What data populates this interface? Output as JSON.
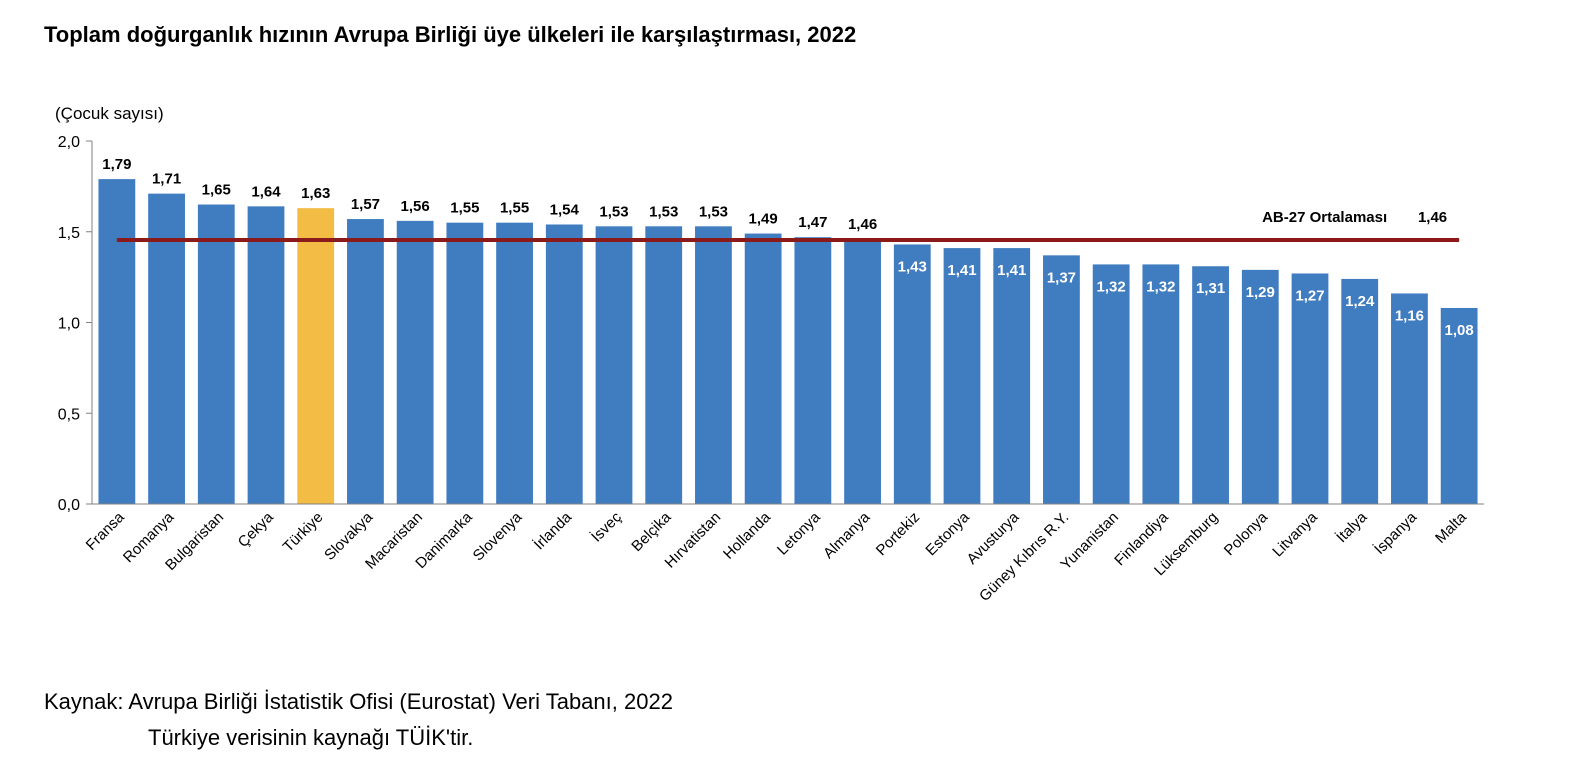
{
  "chart_title": "Toplam doğurganlık hızının Avrupa Birliği üye ülkeleri ile karşılaştırması, 2022",
  "source": {
    "line1": "Kaynak: Avrupa Birliği İstatistik Ofisi (Eurostat) Veri Tabanı, 2022",
    "line2": "Türkiye verisinin kaynağı TÜİK'tir."
  },
  "chart_data": {
    "type": "bar",
    "title": "Toplam doğurganlık hızının Avrupa Birliği üye ülkeleri ile karşılaştırması, 2022",
    "ylabel": "(Çocuk sayısı)",
    "xlabel": "",
    "ylim": [
      0,
      2.0
    ],
    "yticks": [
      "0,0",
      "0,5",
      "1,0",
      "1,5",
      "2,0"
    ],
    "ytick_values": [
      0,
      0.5,
      1.0,
      1.5,
      2.0
    ],
    "categories": [
      "Fransa",
      "Romanya",
      "Bulgaristan",
      "Çekya",
      "Türkiye",
      "Slovakya",
      "Macaristan",
      "Danimarka",
      "Slovenya",
      "İrlanda",
      "İsveç",
      "Belçika",
      "Hırvatistan",
      "Hollanda",
      "Letonya",
      "Almanya",
      "Portekiz",
      "Estonya",
      "Avusturya",
      "Güney Kıbrıs R.Y.",
      "Yunanistan",
      "Finlandiya",
      "Lüksemburg",
      "Polonya",
      "Litvanya",
      "İtalya",
      "İspanya",
      "Malta"
    ],
    "values": [
      1.79,
      1.71,
      1.65,
      1.64,
      1.63,
      1.57,
      1.56,
      1.55,
      1.55,
      1.54,
      1.53,
      1.53,
      1.53,
      1.49,
      1.47,
      1.46,
      1.43,
      1.41,
      1.41,
      1.37,
      1.32,
      1.32,
      1.31,
      1.29,
      1.27,
      1.24,
      1.16,
      1.08
    ],
    "value_labels": [
      "1,79",
      "1,71",
      "1,65",
      "1,64",
      "1,63",
      "1,57",
      "1,56",
      "1,55",
      "1,55",
      "1,54",
      "1,53",
      "1,53",
      "1,53",
      "1,49",
      "1,47",
      "1,46",
      "1,43",
      "1,41",
      "1,41",
      "1,37",
      "1,32",
      "1,32",
      "1,31",
      "1,29",
      "1,27",
      "1,24",
      "1,16",
      "1,08"
    ],
    "highlight_category": "Türkiye",
    "reference_line": {
      "label": "AB-27 Ortalaması",
      "value": 1.46,
      "value_label": "1,46"
    },
    "colors": {
      "bar": "#3f7cc0",
      "highlight": "#f2bc45",
      "reference_line": "#8b1a1a"
    },
    "grid": false
  }
}
